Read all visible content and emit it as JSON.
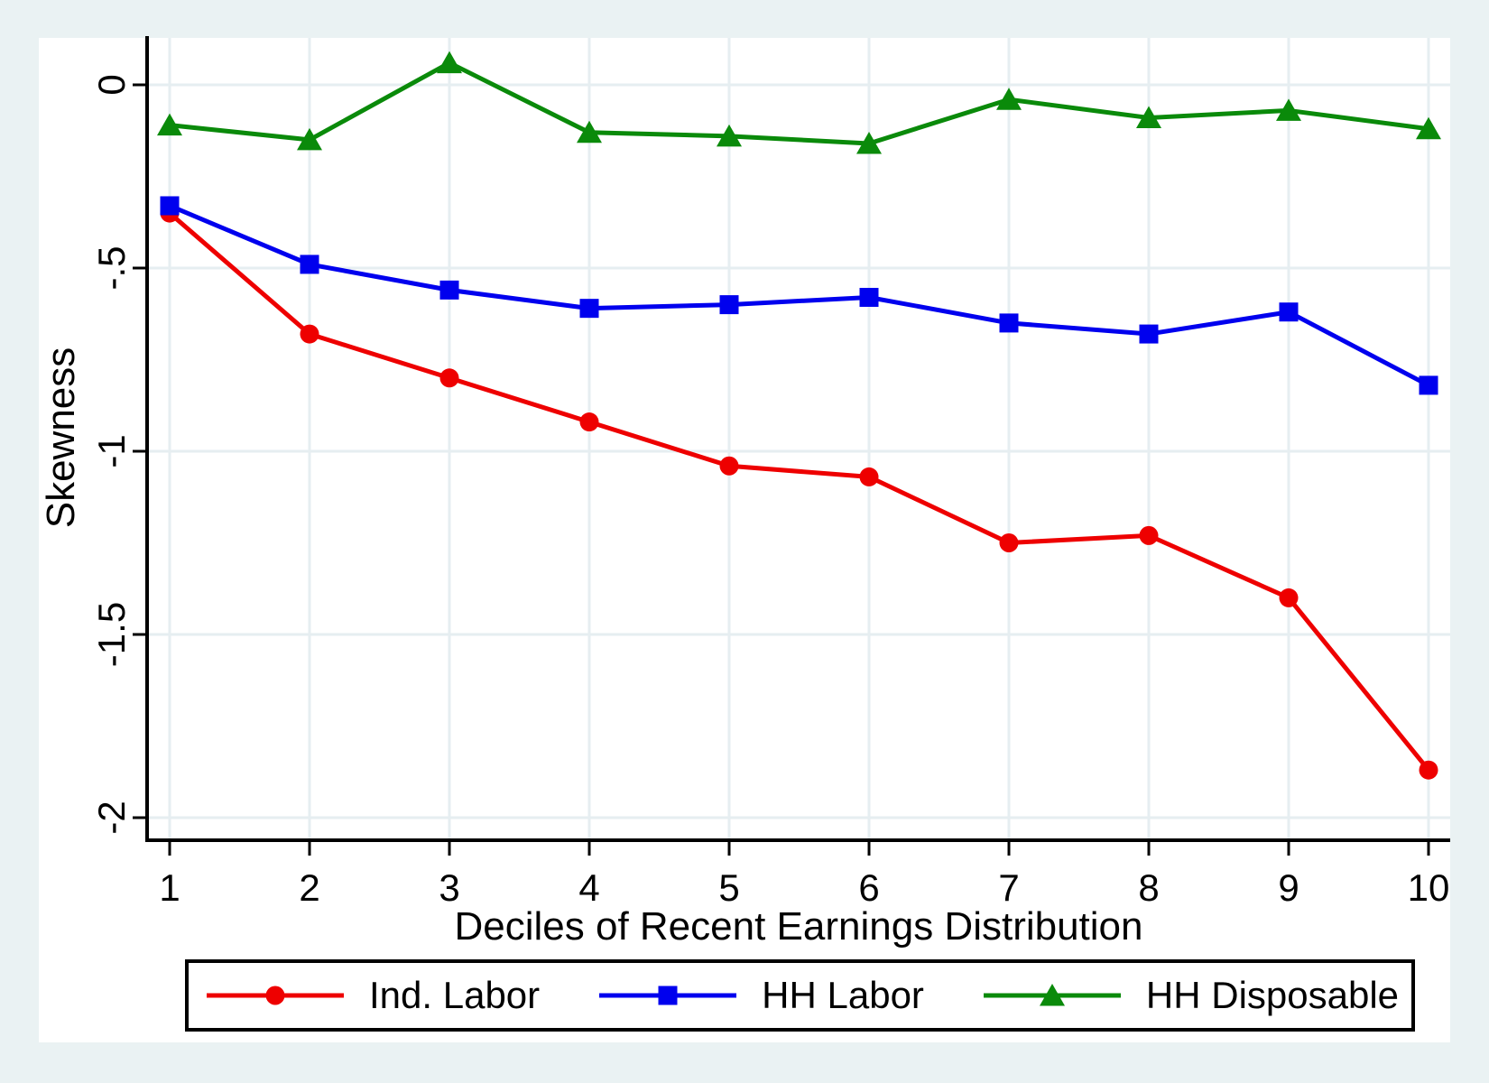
{
  "figure": {
    "background_color": "#eaf2f3",
    "plot_background_color": "#ffffff",
    "grid_color": "#e6eef1",
    "axis_color": "#000000"
  },
  "chart_data": {
    "type": "line",
    "title": "",
    "xlabel": "Deciles of Recent Earnings Distribution",
    "ylabel": "Skewness",
    "x": [
      1,
      2,
      3,
      4,
      5,
      6,
      7,
      8,
      9,
      10
    ],
    "x_tick_labels": [
      "1",
      "2",
      "3",
      "4",
      "5",
      "6",
      "7",
      "8",
      "9",
      "10"
    ],
    "y_ticks": [
      {
        "value": 0,
        "label": "0"
      },
      {
        "value": -0.5,
        "label": "-.5"
      },
      {
        "value": -1,
        "label": "-1"
      },
      {
        "value": -1.5,
        "label": "-1.5"
      },
      {
        "value": -2,
        "label": "-2"
      }
    ],
    "xlim": [
      0.84,
      10.16
    ],
    "ylim": [
      -2.06,
      0.13
    ],
    "grid": true,
    "legend_position": "bottom",
    "series": [
      {
        "name": "Ind. Labor",
        "color": "#ee0000",
        "marker": "circle",
        "values": [
          -0.35,
          -0.68,
          -0.8,
          -0.92,
          -1.04,
          -1.07,
          -1.25,
          -1.23,
          -1.4,
          -1.87
        ]
      },
      {
        "name": "HH Labor",
        "color": "#0000ee",
        "marker": "square",
        "values": [
          -0.33,
          -0.49,
          -0.56,
          -0.61,
          -0.6,
          -0.58,
          -0.65,
          -0.68,
          -0.62,
          -0.82
        ]
      },
      {
        "name": "HH Disposable",
        "color": "#0a8a0a",
        "marker": "triangle",
        "values": [
          -0.11,
          -0.15,
          0.06,
          -0.13,
          -0.14,
          -0.16,
          -0.04,
          -0.09,
          -0.07,
          -0.12
        ]
      }
    ]
  }
}
